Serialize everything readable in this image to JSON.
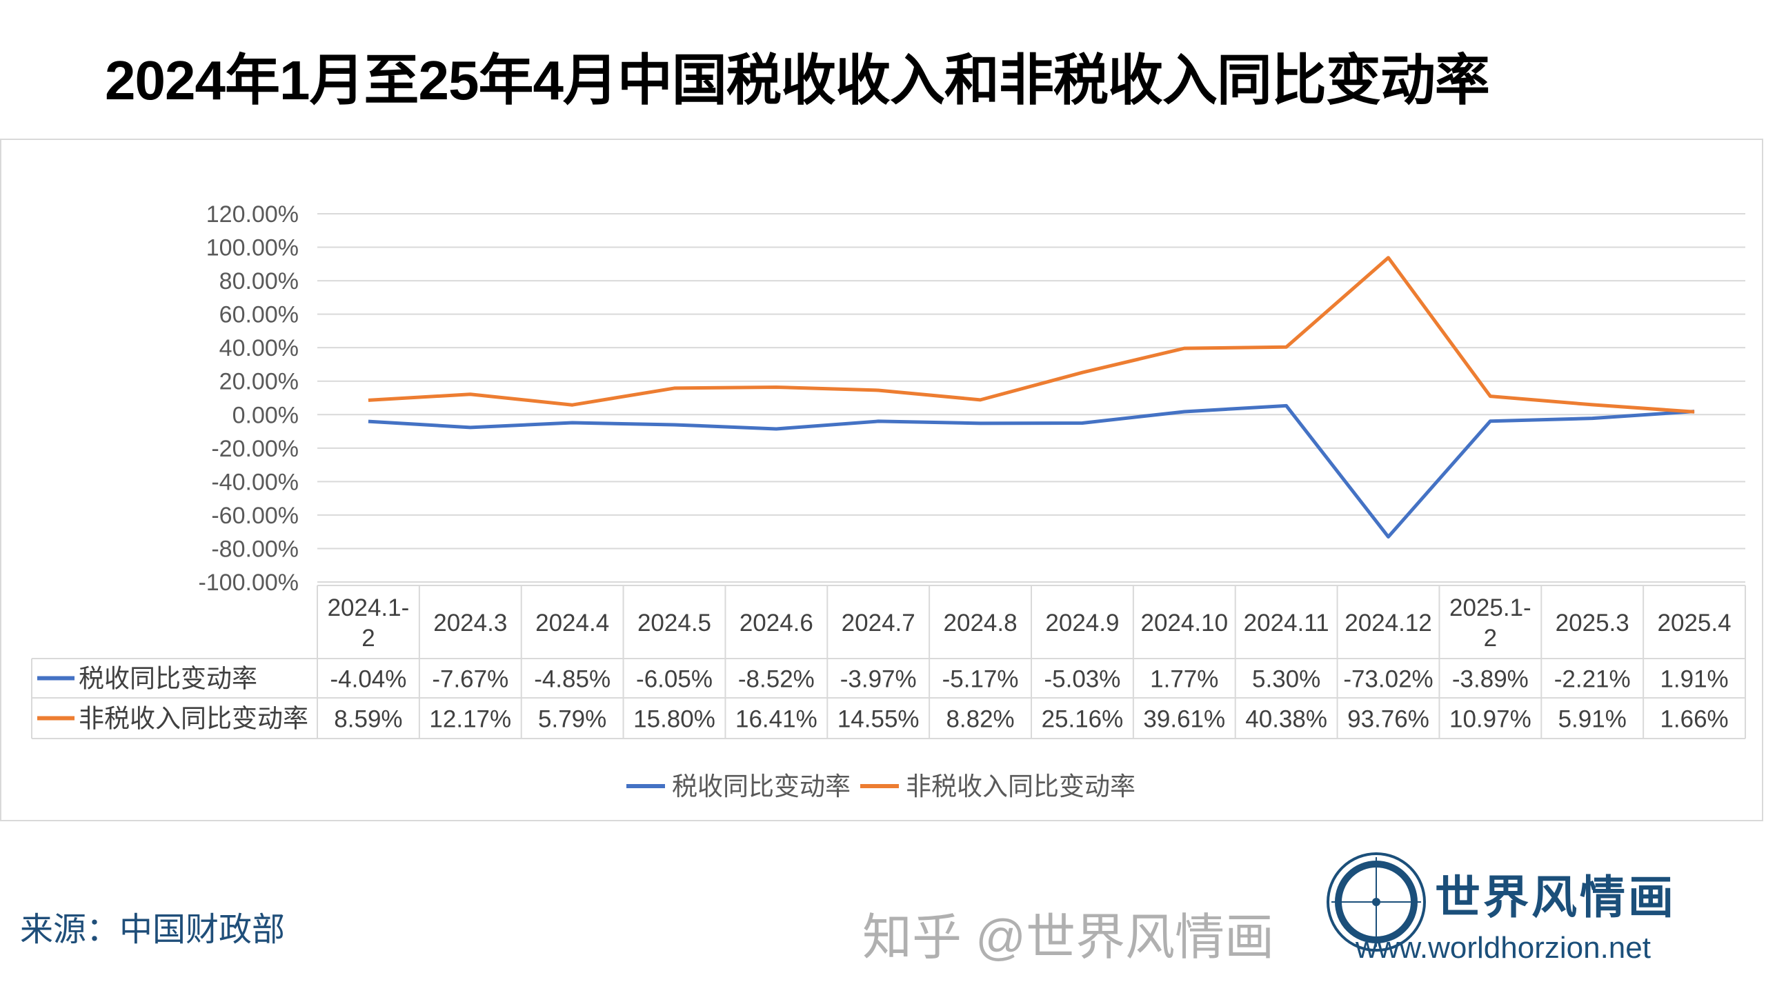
{
  "title": "2024年1月至25年4月中国税收收入和非税收入同比变动率",
  "source": "来源：中国财政部",
  "logo": {
    "name": "世界风情画",
    "url": "www.worldhorzion.net",
    "watermark": "知乎 @世界风情画"
  },
  "chart_data": {
    "type": "line",
    "categories": [
      "2024.1-2",
      "2024.3",
      "2024.4",
      "2024.5",
      "2024.6",
      "2024.7",
      "2024.8",
      "2024.9",
      "2024.10",
      "2024.11",
      "2024.12",
      "2025.1-2",
      "2025.3",
      "2025.4"
    ],
    "series": [
      {
        "name": "税收同比变动率",
        "color": "#4472c4",
        "values": [
          -4.04,
          -7.67,
          -4.85,
          -6.05,
          -8.52,
          -3.97,
          -5.17,
          -5.03,
          1.77,
          5.3,
          -73.02,
          -3.89,
          -2.21,
          1.91
        ],
        "labels": [
          "-4.04%",
          "-7.67%",
          "-4.85%",
          "-6.05%",
          "-8.52%",
          "-3.97%",
          "-5.17%",
          "-5.03%",
          "1.77%",
          "5.30%",
          "-73.02%",
          "-3.89%",
          "-2.21%",
          "1.91%"
        ]
      },
      {
        "name": "非税收入同比变动率",
        "color": "#ed7d31",
        "values": [
          8.59,
          12.17,
          5.79,
          15.8,
          16.41,
          14.55,
          8.82,
          25.16,
          39.61,
          40.38,
          93.76,
          10.97,
          5.91,
          1.66
        ],
        "labels": [
          "8.59%",
          "12.17%",
          "5.79%",
          "15.80%",
          "16.41%",
          "14.55%",
          "8.82%",
          "25.16%",
          "39.61%",
          "40.38%",
          "93.76%",
          "10.97%",
          "5.91%",
          "1.66%"
        ]
      }
    ],
    "ylim": [
      -100,
      120
    ],
    "yticks": [
      "120.00%",
      "100.00%",
      "80.00%",
      "60.00%",
      "40.00%",
      "20.00%",
      "0.00%",
      "-20.00%",
      "-40.00%",
      "-60.00%",
      "-80.00%",
      "-100.00%"
    ],
    "grid": true,
    "data_table": true,
    "legend": "bottom"
  }
}
